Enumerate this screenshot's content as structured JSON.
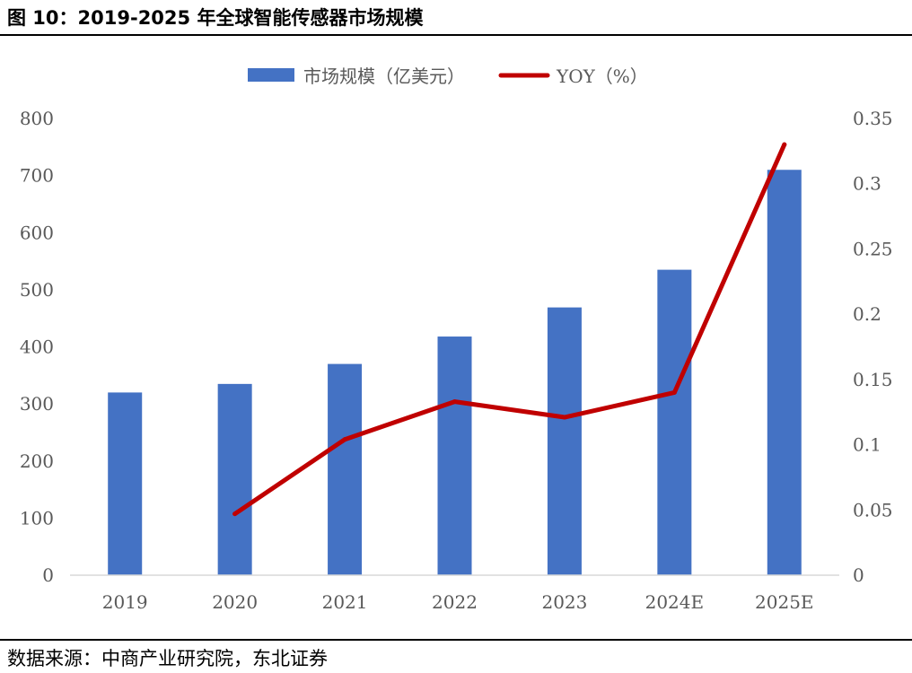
{
  "figure_title": "图 10：2019-2025 年全球智能传感器市场规模",
  "source_note": "数据来源：中商产业研究院，东北证券",
  "colors": {
    "bar": "#4472C4",
    "line": "#C00000",
    "axis_text": "#595959",
    "axis_line": "#D9D9D9"
  },
  "chart_data": {
    "type": "bar",
    "categories": [
      "2019",
      "2020",
      "2021",
      "2022",
      "2023",
      "2024E",
      "2025E"
    ],
    "series": [
      {
        "name": "市场规模（亿美元）",
        "type": "bar",
        "axis": "left",
        "values": [
          320,
          335,
          370,
          418,
          469,
          535,
          710
        ]
      },
      {
        "name": "YOY（%）",
        "type": "line",
        "axis": "right",
        "values": [
          null,
          0.047,
          0.104,
          0.133,
          0.121,
          0.14,
          0.33
        ]
      }
    ],
    "y_left": {
      "min": 0,
      "max": 800,
      "ticks": [
        "0",
        "100",
        "200",
        "300",
        "400",
        "500",
        "600",
        "700",
        "800"
      ]
    },
    "y_right": {
      "min": 0,
      "max": 0.35,
      "ticks": [
        "0",
        "0.05",
        "0.1",
        "0.15",
        "0.2",
        "0.25",
        "0.3",
        "0.35"
      ]
    },
    "legend_position": "top-center",
    "grid": false
  }
}
